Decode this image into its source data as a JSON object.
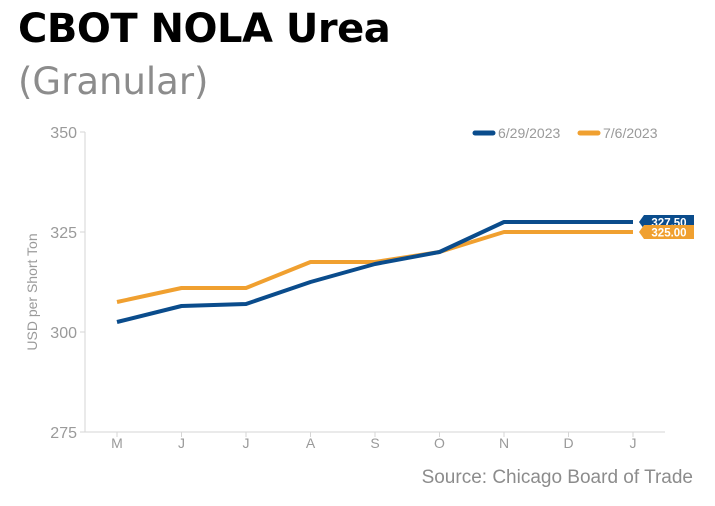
{
  "header": {
    "title": "CBOT NOLA Urea",
    "subtitle": "(Granular)"
  },
  "footer": {
    "source": "Source: Chicago Board of Trade"
  },
  "colors": {
    "series_1": "#0a4c8c",
    "series_2": "#f0a030",
    "axis": "#d6d6d6",
    "tick_text": "#9a9a9a"
  },
  "chart_data": {
    "type": "line",
    "title": "CBOT NOLA Urea",
    "subtitle": "(Granular)",
    "xlabel": "",
    "ylabel": "USD per Short Ton",
    "categories": [
      "M",
      "J",
      "J",
      "A",
      "S",
      "O",
      "N",
      "D",
      "J"
    ],
    "ylim": [
      275,
      350
    ],
    "yticks": [
      275,
      300,
      325,
      350
    ],
    "grid": false,
    "legend_position": "top-right",
    "series": [
      {
        "name": "6/29/2023",
        "color": "#0a4c8c",
        "values": [
          302.5,
          306.5,
          307,
          312.5,
          317,
          320,
          327.5,
          327.5,
          327.5
        ],
        "end_label": "327.50"
      },
      {
        "name": "7/6/2023",
        "color": "#f0a030",
        "values": [
          307.5,
          311,
          311,
          317.5,
          317.5,
          320,
          325,
          325,
          325
        ],
        "end_label": "325.00"
      }
    ]
  }
}
